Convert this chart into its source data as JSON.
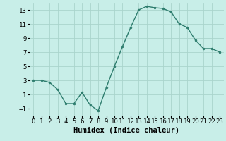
{
  "x": [
    0,
    1,
    2,
    3,
    4,
    5,
    6,
    7,
    8,
    9,
    10,
    11,
    12,
    13,
    14,
    15,
    16,
    17,
    18,
    19,
    20,
    21,
    22,
    23
  ],
  "y": [
    3.0,
    3.0,
    2.7,
    1.7,
    -0.3,
    -0.3,
    1.3,
    -0.5,
    -1.3,
    2.0,
    5.0,
    7.8,
    10.5,
    13.0,
    13.5,
    13.3,
    13.2,
    12.7,
    11.0,
    10.5,
    8.7,
    7.5,
    7.5,
    7.0
  ],
  "line_color": "#2e7d6e",
  "marker": "o",
  "markersize": 2.0,
  "linewidth": 1.0,
  "bg_color": "#c8eee8",
  "grid_color": "#aad4cc",
  "xlabel": "Humidex (Indice chaleur)",
  "xlabel_fontsize": 7.5,
  "tick_fontsize": 6.5,
  "ylim": [
    -2,
    14
  ],
  "xlim": [
    -0.5,
    23.5
  ],
  "yticks": [
    -1,
    1,
    3,
    5,
    7,
    9,
    11,
    13
  ],
  "xticks": [
    0,
    1,
    2,
    3,
    4,
    5,
    6,
    7,
    8,
    9,
    10,
    11,
    12,
    13,
    14,
    15,
    16,
    17,
    18,
    19,
    20,
    21,
    22,
    23
  ]
}
